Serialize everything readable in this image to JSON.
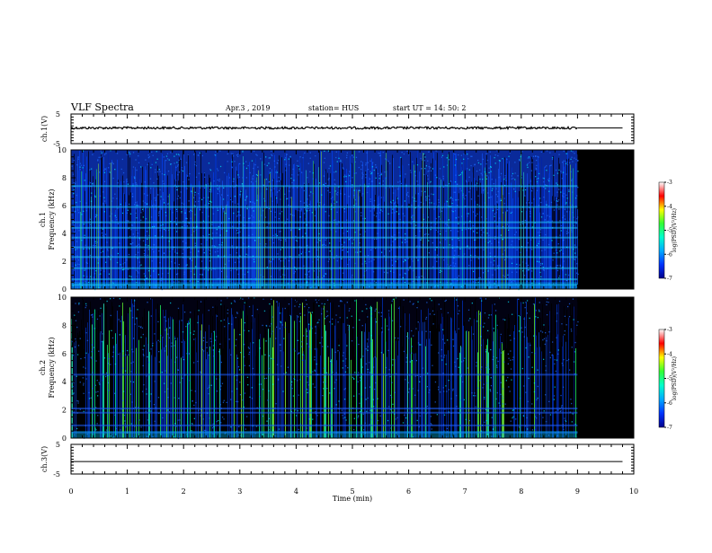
{
  "header": {
    "title": "VLF Spectra",
    "date": "Apr.3  , 2019",
    "station": "station= HUS",
    "start": "start  UT  =   14: 50: 2"
  },
  "colors": {
    "background": "#ffffff",
    "axis": "#000000",
    "spectrogram_floor": "#000000",
    "colormap": [
      "#00008b",
      "#0033ff",
      "#00aaff",
      "#00ffcc",
      "#33ff33",
      "#ffff00",
      "#ff0000",
      "#ffffff"
    ]
  },
  "chart_data": [
    {
      "type": "line",
      "name": "ch1-waveform",
      "ylabel": "ch.1(V)",
      "ylim": [
        -5,
        5
      ],
      "yticks": [
        "5",
        "-5"
      ],
      "xlim": [
        0,
        10
      ],
      "series": [
        {
          "x": [
            0,
            9,
            9.8
          ],
          "values": [
            0.3,
            0.3,
            0.3
          ]
        }
      ],
      "data_end_min": 9.0
    },
    {
      "type": "heatmap",
      "name": "ch1-spectrogram",
      "ylabel": "ch.1\nFrequency  (kHz)",
      "ylim": [
        0,
        10
      ],
      "yticks": [
        "0",
        "2",
        "4",
        "6",
        "8",
        "10"
      ],
      "xlim": [
        0,
        10
      ],
      "data_end_min": 9.0,
      "colorbar": {
        "label": "log(PSD)(V²/Hz)",
        "ticks": [
          "-3",
          "-4",
          "-5",
          "-6",
          "-7"
        ],
        "range": [
          -7,
          -3
        ]
      },
      "bands_khz": [
        0.3,
        0.7,
        1.5,
        2.3,
        3.0,
        3.7,
        4.4,
        4.8,
        5.9,
        7.4
      ]
    },
    {
      "type": "heatmap",
      "name": "ch2-spectrogram",
      "ylabel": "ch.2\nFrequency  (kHz)",
      "ylim": [
        0,
        10
      ],
      "yticks": [
        "0",
        "2",
        "4",
        "6",
        "8",
        "10"
      ],
      "xlim": [
        0,
        10
      ],
      "data_end_min": 9.0,
      "colorbar": {
        "label": "log(PSD)(V²/Hz)",
        "ticks": [
          "-3",
          "-4",
          "-5",
          "-6",
          "-7"
        ],
        "range": [
          -7,
          -3
        ]
      },
      "bands_khz": [
        0.4,
        0.9,
        1.8,
        2.1,
        4.5
      ]
    },
    {
      "type": "line",
      "name": "ch3-waveform",
      "ylabel": "ch.3(V)",
      "ylim": [
        -5,
        5
      ],
      "yticks": [
        "5",
        "-5"
      ],
      "xlim": [
        0,
        10
      ],
      "xlabel": "Time  (min)",
      "xticks": [
        "0",
        "1",
        "2",
        "3",
        "4",
        "5",
        "6",
        "7",
        "8",
        "9",
        "10"
      ],
      "series": [
        {
          "x": [
            0,
            9.8
          ],
          "values": [
            -0.8,
            -0.8
          ]
        }
      ]
    }
  ]
}
